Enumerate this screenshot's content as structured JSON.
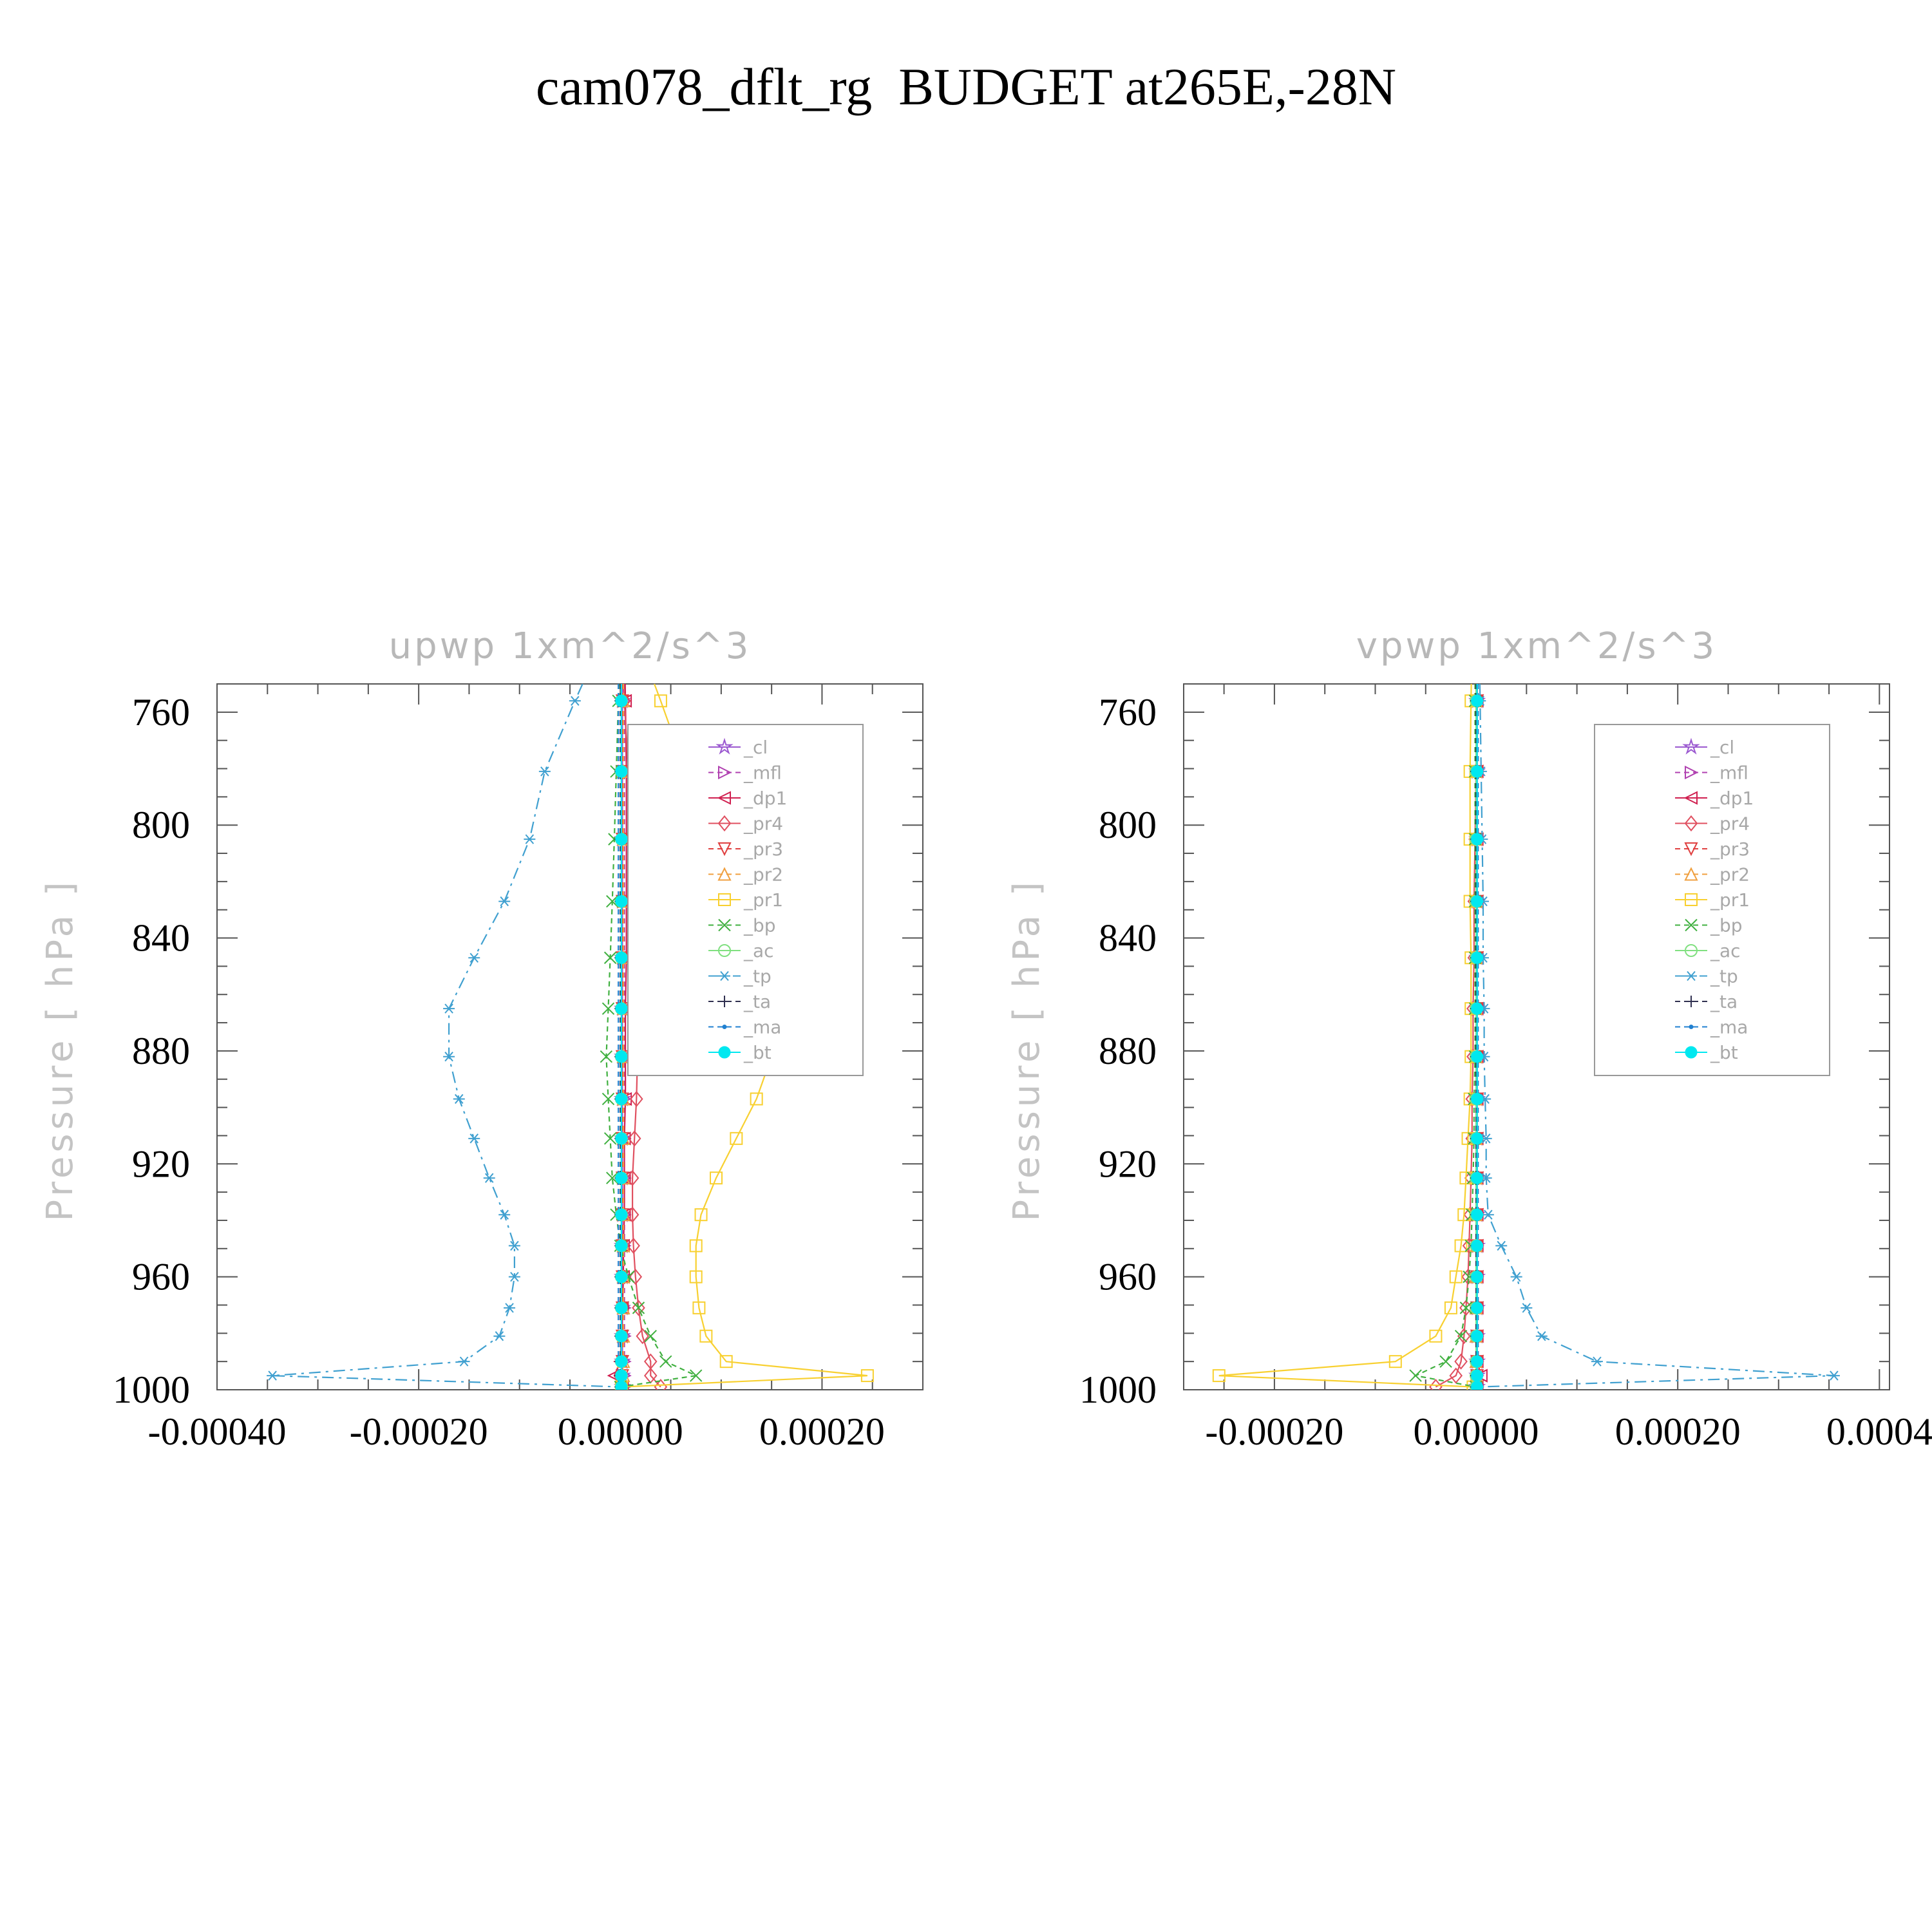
{
  "title": "cam078_dflt_rg  BUDGET at265E,-28N",
  "chart_data": [
    {
      "type": "line",
      "title": "upwp    1xm^2/s^3",
      "ylabel": "Pressure  [ hPa ]",
      "xlim": [
        -0.0004,
        0.0003
      ],
      "ylim": [
        1000,
        750
      ],
      "xticks": [
        -0.0004,
        -0.0002,
        0.0,
        0.0002
      ],
      "xtick_labels": [
        "-0.00040",
        "-0.00020",
        "0.00000",
        "0.00020"
      ],
      "yticks": [
        760,
        800,
        840,
        880,
        920,
        960,
        1000
      ],
      "ytick_labels": [
        "760",
        "800",
        "840",
        "880",
        "920",
        "960",
        "1000"
      ],
      "legend_position": "top-right",
      "grid": false,
      "levels": [
        756,
        781,
        805,
        827,
        847,
        865,
        882,
        897,
        911,
        925,
        938,
        949,
        960,
        971,
        981,
        990,
        995,
        999
      ],
      "series": [
        {
          "name": "_cl",
          "color": "#9b59d0",
          "marker": "star",
          "dash": "",
          "values": [
            2e-06,
            2e-06,
            2e-06,
            2e-06,
            2e-06,
            2e-06,
            2e-06,
            2e-06,
            2e-06,
            2e-06,
            2e-06,
            2e-06,
            2e-06,
            2e-06,
            2e-06,
            2e-06,
            2e-06,
            2e-06
          ]
        },
        {
          "name": "_mfl",
          "color": "#b040b0",
          "marker": "tri-right",
          "dash": "8,6",
          "values": [
            4e-06,
            4e-06,
            4e-06,
            4e-06,
            4e-06,
            4e-06,
            4e-06,
            4e-06,
            4e-06,
            4e-06,
            4e-06,
            4e-06,
            4e-06,
            4e-06,
            4e-06,
            4e-06,
            4e-06,
            4e-06
          ]
        },
        {
          "name": "_dp1",
          "color": "#d02050",
          "marker": "tri-left",
          "dash": "",
          "values": [
            5e-06,
            6e-06,
            6e-06,
            6e-06,
            6e-06,
            5e-06,
            5e-06,
            5e-06,
            4e-06,
            4e-06,
            4e-06,
            3e-06,
            3e-06,
            2e-06,
            1e-06,
            0.0,
            -6e-06,
            2e-06
          ]
        },
        {
          "name": "_pr4",
          "color": "#e05060",
          "marker": "diamond",
          "dash": "",
          "values": [
            4e-06,
            8e-06,
            1e-05,
            1.2e-05,
            1.4e-05,
            1.6e-05,
            1.7e-05,
            1.6e-05,
            1.4e-05,
            1.2e-05,
            1.2e-05,
            1.3e-05,
            1.5e-05,
            1.8e-05,
            2.2e-05,
            3e-05,
            3e-05,
            4e-05
          ]
        },
        {
          "name": "_pr3",
          "color": "#e04040",
          "marker": "tri-down",
          "dash": "8,6",
          "values": [
            2e-06,
            2e-06,
            2e-06,
            2e-06,
            2e-06,
            2e-06,
            2e-06,
            2e-06,
            2e-06,
            2e-06,
            2e-06,
            2e-06,
            2e-06,
            2e-06,
            2e-06,
            2e-06,
            2e-06,
            2e-06
          ]
        },
        {
          "name": "_pr2",
          "color": "#f0a040",
          "marker": "tri-up",
          "dash": "8,6",
          "values": [
            3e-06,
            3e-06,
            3e-06,
            3e-06,
            3e-06,
            3e-06,
            3e-06,
            3e-06,
            3e-06,
            3e-06,
            3e-06,
            3e-06,
            3e-06,
            3e-06,
            3e-06,
            3e-06,
            3e-06,
            3e-06
          ]
        },
        {
          "name": "_pr1",
          "color": "#f8d030",
          "marker": "square",
          "dash": "",
          "values": [
            4e-05,
            6.5e-05,
            9e-05,
            0.000115,
            0.000135,
            0.000155,
            0.00015,
            0.000135,
            0.000115,
            9.5e-05,
            8e-05,
            7.5e-05,
            7.5e-05,
            7.8e-05,
            8.5e-05,
            0.000105,
            0.000245,
            1e-06
          ]
        },
        {
          "name": "_bp",
          "color": "#40b040",
          "marker": "x",
          "dash": "8,6",
          "values": [
            -2e-06,
            -4e-06,
            -6e-06,
            -8e-06,
            -1e-05,
            -1.2e-05,
            -1.4e-05,
            -1.2e-05,
            -1e-05,
            -8e-06,
            -4e-06,
            0.0,
            8e-06,
            1.8e-05,
            3e-05,
            4.5e-05,
            7.5e-05,
            0.0
          ]
        },
        {
          "name": "_ac",
          "color": "#80e080",
          "marker": "circle",
          "dash": "",
          "values": [
            1e-06,
            1e-06,
            1e-06,
            1e-06,
            1e-06,
            1e-06,
            1e-06,
            1e-06,
            1e-06,
            1e-06,
            1e-06,
            1e-06,
            1e-06,
            1e-06,
            1e-06,
            1e-06,
            1e-06,
            1e-06
          ]
        },
        {
          "name": "_tp",
          "color": "#40a0d0",
          "marker": "asterisk",
          "dash": "18,8,4,8",
          "values": [
            -4.5e-05,
            -7.5e-05,
            -9e-05,
            -0.000115,
            -0.000145,
            -0.00017,
            -0.00017,
            -0.00016,
            -0.000145,
            -0.00013,
            -0.000115,
            -0.000105,
            -0.000105,
            -0.00011,
            -0.00012,
            -0.000155,
            -0.000345,
            1e-06
          ]
        },
        {
          "name": "_ta",
          "color": "#303050",
          "marker": "plus",
          "dash": "8,6",
          "values": [
            0.0,
            0.0,
            0.0,
            0.0,
            0.0,
            0.0,
            0.0,
            0.0,
            0.0,
            0.0,
            0.0,
            0.0,
            0.0,
            0.0,
            0.0,
            0.0,
            0.0,
            0.0
          ]
        },
        {
          "name": "_ma",
          "color": "#2080d0",
          "marker": "dot",
          "dash": "8,6",
          "values": [
            -2e-06,
            -2e-06,
            -2e-06,
            -2e-06,
            -2e-06,
            -2e-06,
            -2e-06,
            -2e-06,
            -2e-06,
            -2e-06,
            -2e-06,
            -2e-06,
            -2e-06,
            -2e-06,
            -2e-06,
            -2e-06,
            -2e-06,
            -2e-06
          ]
        },
        {
          "name": "_bt",
          "color": "#00e8f0",
          "marker": "filled-circle",
          "dash": "",
          "values": [
            1e-06,
            1e-06,
            1e-06,
            1e-06,
            1e-06,
            1e-06,
            1e-06,
            1e-06,
            1e-06,
            1e-06,
            1e-06,
            1e-06,
            1e-06,
            1e-06,
            1e-06,
            1e-06,
            1e-06,
            1e-06
          ]
        }
      ]
    },
    {
      "type": "line",
      "title": "vpwp    1xm^2/s^3",
      "ylabel": "Pressure  [ hPa ]",
      "xlim": [
        -0.00029,
        0.00041
      ],
      "ylim": [
        1000,
        750
      ],
      "xticks": [
        -0.0002,
        0.0,
        0.0002,
        0.0004
      ],
      "xtick_labels": [
        "-0.00020",
        "0.00000",
        "0.00020",
        "0.0004"
      ],
      "yticks": [
        760,
        800,
        840,
        880,
        920,
        960,
        1000
      ],
      "ytick_labels": [
        "760",
        "800",
        "840",
        "880",
        "920",
        "960",
        "1000"
      ],
      "legend_position": "top-right",
      "grid": false,
      "levels": [
        756,
        781,
        805,
        827,
        847,
        865,
        882,
        897,
        911,
        925,
        938,
        949,
        960,
        971,
        981,
        990,
        995,
        999
      ],
      "series": [
        {
          "name": "_cl",
          "color": "#9b59d0",
          "marker": "star",
          "dash": "",
          "values": [
            1e-06,
            1e-06,
            1e-06,
            1e-06,
            1e-06,
            1e-06,
            1e-06,
            1e-06,
            1e-06,
            1e-06,
            1e-06,
            1e-06,
            1e-06,
            1e-06,
            1e-06,
            1e-06,
            1e-06,
            1e-06
          ]
        },
        {
          "name": "_mfl",
          "color": "#b040b0",
          "marker": "tri-right",
          "dash": "8,6",
          "values": [
            1e-06,
            1e-06,
            1e-06,
            1e-06,
            1e-06,
            1e-06,
            1e-06,
            1e-06,
            1e-06,
            1e-06,
            1e-06,
            1e-06,
            1e-06,
            1e-06,
            1e-06,
            1e-06,
            1e-06,
            1e-06
          ]
        },
        {
          "name": "_dp1",
          "color": "#d02050",
          "marker": "tri-left",
          "dash": "",
          "values": [
            1e-06,
            1e-06,
            1e-06,
            1e-06,
            1e-06,
            1e-06,
            1e-06,
            1e-06,
            1e-06,
            1e-06,
            1e-06,
            1e-06,
            1e-06,
            1e-06,
            1e-06,
            1e-06,
            5e-06,
            1e-06
          ]
        },
        {
          "name": "_pr4",
          "color": "#e05060",
          "marker": "diamond",
          "dash": "",
          "values": [
            1e-06,
            0.0,
            -1e-06,
            -2e-06,
            -2e-06,
            -3e-06,
            -3e-06,
            -4e-06,
            -4e-06,
            -5e-06,
            -6e-06,
            -7e-06,
            -8e-06,
            -1e-05,
            -1.2e-05,
            -1.5e-05,
            -2e-05,
            -4e-05
          ]
        },
        {
          "name": "_pr3",
          "color": "#e04040",
          "marker": "tri-down",
          "dash": "8,6",
          "values": [
            1e-06,
            1e-06,
            1e-06,
            1e-06,
            1e-06,
            1e-06,
            1e-06,
            1e-06,
            1e-06,
            1e-06,
            1e-06,
            1e-06,
            1e-06,
            1e-06,
            1e-06,
            1e-06,
            1e-06,
            1e-06
          ]
        },
        {
          "name": "_pr2",
          "color": "#f0a040",
          "marker": "tri-up",
          "dash": "8,6",
          "values": [
            0.0,
            0.0,
            0.0,
            0.0,
            0.0,
            0.0,
            0.0,
            0.0,
            0.0,
            0.0,
            0.0,
            0.0,
            0.0,
            0.0,
            0.0,
            0.0,
            0.0,
            0.0
          ]
        },
        {
          "name": "_pr1",
          "color": "#f8d030",
          "marker": "square",
          "dash": "",
          "values": [
            -5e-06,
            -6e-06,
            -6e-06,
            -6e-06,
            -5e-06,
            -5e-06,
            -5e-06,
            -6e-06,
            -8e-06,
            -1e-05,
            -1.2e-05,
            -1.5e-05,
            -2e-05,
            -2.5e-05,
            -4e-05,
            -8e-05,
            -0.000255,
            -3e-06
          ]
        },
        {
          "name": "_bp",
          "color": "#40b040",
          "marker": "x",
          "dash": "8,6",
          "values": [
            -1e-06,
            -1e-06,
            -1e-06,
            -1e-06,
            -1e-06,
            -1e-06,
            -1e-06,
            -2e-06,
            -2e-06,
            -3e-06,
            -4e-06,
            -5e-06,
            -7e-06,
            -1e-05,
            -1.5e-05,
            -3e-05,
            -6e-05,
            0.0
          ]
        },
        {
          "name": "_ac",
          "color": "#80e080",
          "marker": "circle",
          "dash": "",
          "values": [
            0.0,
            0.0,
            0.0,
            0.0,
            0.0,
            0.0,
            0.0,
            0.0,
            0.0,
            0.0,
            0.0,
            0.0,
            0.0,
            0.0,
            0.0,
            0.0,
            0.0,
            0.0
          ]
        },
        {
          "name": "_tp",
          "color": "#40a0d0",
          "marker": "asterisk",
          "dash": "18,8,4,8",
          "values": [
            4e-06,
            5e-06,
            6e-06,
            7e-06,
            7e-06,
            8e-06,
            8e-06,
            9e-06,
            1e-05,
            1e-05,
            1.2e-05,
            2.5e-05,
            4e-05,
            5e-05,
            6.5e-05,
            0.00012,
            0.000355,
            2e-06
          ]
        },
        {
          "name": "_ta",
          "color": "#303050",
          "marker": "plus",
          "dash": "8,6",
          "values": [
            0.0,
            0.0,
            0.0,
            0.0,
            0.0,
            0.0,
            0.0,
            0.0,
            0.0,
            0.0,
            0.0,
            0.0,
            0.0,
            0.0,
            0.0,
            0.0,
            0.0,
            0.0
          ]
        },
        {
          "name": "_ma",
          "color": "#2080d0",
          "marker": "dot",
          "dash": "8,6",
          "values": [
            2e-06,
            2e-06,
            2e-06,
            2e-06,
            2e-06,
            2e-06,
            2e-06,
            2e-06,
            2e-06,
            2e-06,
            2e-06,
            2e-06,
            2e-06,
            2e-06,
            2e-06,
            2e-06,
            2e-06,
            2e-06
          ]
        },
        {
          "name": "_bt",
          "color": "#00e8f0",
          "marker": "filled-circle",
          "dash": "",
          "values": [
            1e-06,
            1e-06,
            1e-06,
            1e-06,
            1e-06,
            1e-06,
            1e-06,
            1e-06,
            1e-06,
            1e-06,
            1e-06,
            1e-06,
            1e-06,
            1e-06,
            1e-06,
            1e-06,
            1e-06,
            1e-06
          ]
        }
      ]
    }
  ]
}
